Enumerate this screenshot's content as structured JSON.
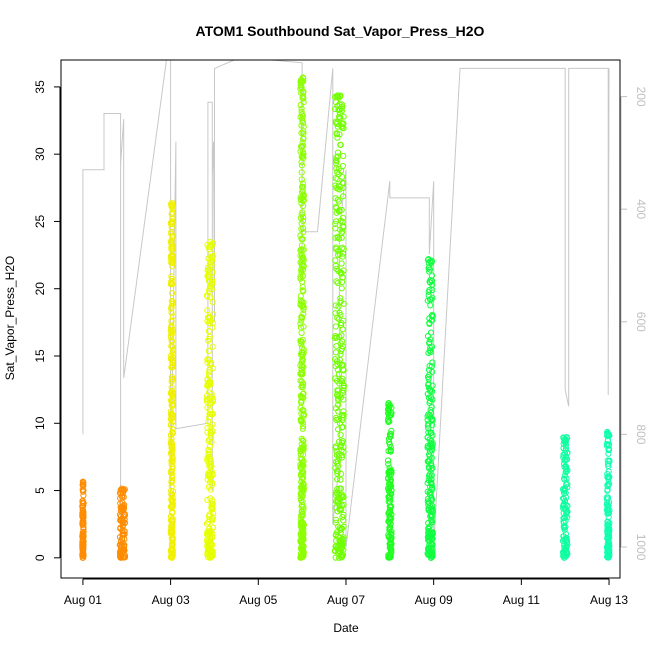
{
  "chart_data": {
    "type": "scatter",
    "title": "ATOM1 Southbound Sat_Vapor_Press_H2O",
    "xlabel": "Date",
    "ylabel": "Sat_Vapor_Press_H2O",
    "x_unit": "day of August",
    "xlim": [
      0.5,
      13.25
    ],
    "ylim": [
      -1.5,
      37
    ],
    "x_ticks": [
      1,
      3,
      5,
      7,
      9,
      11,
      13
    ],
    "x_tick_labels": [
      "Aug 01",
      "Aug 03",
      "Aug 05",
      "Aug 07",
      "Aug 09",
      "Aug 11",
      "Aug 13"
    ],
    "y_ticks": [
      0,
      5,
      10,
      15,
      20,
      25,
      30,
      35
    ],
    "y_tick_labels": [
      "0",
      "5",
      "10",
      "15",
      "20",
      "25",
      "30",
      "35"
    ],
    "right_axis": {
      "label": "",
      "reversed": true,
      "lim": [
        135,
        1055
      ],
      "ticks": [
        200,
        400,
        600,
        800,
        1000
      ],
      "tick_labels": [
        "200",
        "400",
        "600",
        "800",
        "1000"
      ],
      "color": "#c0c0c0"
    },
    "grid": false,
    "legend": "none",
    "marker": "open circle",
    "clusters": [
      {
        "x_center": 1.0,
        "x_span": 0.03,
        "y_max": 5.7,
        "color": "#ff8c00"
      },
      {
        "x_center": 1.9,
        "x_span": 0.12,
        "y_max": 5.2,
        "color": "#ff8c00"
      },
      {
        "x_center": 3.03,
        "x_span": 0.05,
        "y_max": 26.4,
        "color": "#f0f000"
      },
      {
        "x_center": 3.9,
        "x_span": 0.14,
        "y_max": 23.5,
        "color": "#e6ff00"
      },
      {
        "x_center": 6.0,
        "x_span": 0.08,
        "y_max": 35.7,
        "color": "#8cff00"
      },
      {
        "x_center": 6.85,
        "x_span": 0.2,
        "y_max": 34.5,
        "color": "#70ff00"
      },
      {
        "x_center": 8.0,
        "x_span": 0.08,
        "y_max": 11.5,
        "color": "#20ff20"
      },
      {
        "x_center": 8.92,
        "x_span": 0.12,
        "y_max": 22.3,
        "color": "#10ff40"
      },
      {
        "x_center": 12.0,
        "x_span": 0.1,
        "y_max": 9.0,
        "color": "#10ffa0"
      },
      {
        "x_center": 12.98,
        "x_span": 0.06,
        "y_max": 9.4,
        "color": "#10ffb0"
      }
    ],
    "pressure_trace": {
      "color": "#c8c8c8",
      "x": [
        1.0,
        1.0,
        1.0,
        1.0,
        1.48,
        1.48,
        1.86,
        1.86,
        1.86,
        1.86,
        1.86,
        1.93,
        1.93,
        3.0,
        3.0,
        3.0,
        3.12,
        3.12,
        3.85,
        3.85,
        3.95,
        3.95,
        3.95,
        3.98,
        4.0,
        4.0,
        4.6,
        6.0,
        6.0,
        6.0,
        6.35,
        6.7,
        6.7,
        6.85,
        6.85,
        7.0,
        7.0,
        8.0,
        8.0,
        8.85,
        8.9,
        8.9,
        9.0,
        9.0,
        9.6,
        12.0,
        12.0,
        12.05,
        12.08,
        12.08,
        12.98,
        12.98,
        13.0
      ],
      "y": [
        560,
        580,
        800,
        330,
        330,
        230,
        230,
        700,
        1000,
        790,
        320,
        240,
        700,
        80,
        80,
        910,
        280,
        790,
        780,
        210,
        210,
        900,
        340,
        280,
        600,
        150,
        130,
        140,
        520,
        440,
        440,
        150,
        960,
        850,
        440,
        330,
        1000,
        350,
        380,
        380,
        380,
        480,
        350,
        1000,
        150,
        150,
        720,
        740,
        750,
        150,
        150,
        730,
        150
      ]
    }
  }
}
